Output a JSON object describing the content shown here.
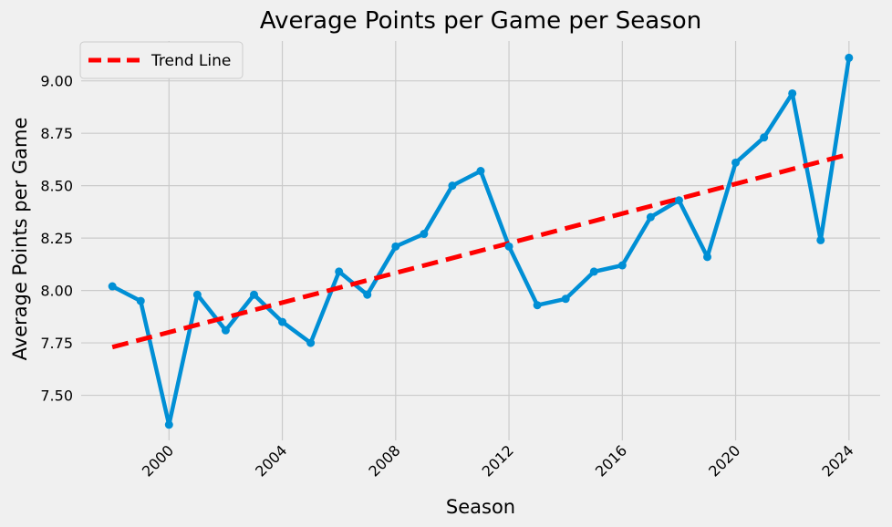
{
  "chart_data": {
    "type": "line",
    "title": "Average Points per Game per Season",
    "xlabel": "Season",
    "ylabel": "Average Points per Game",
    "xlim": [
      1996.9,
      2025.1
    ],
    "ylim": [
      7.285,
      9.19
    ],
    "xticks": [
      2000,
      2004,
      2008,
      2012,
      2016,
      2020,
      2024
    ],
    "yticks": [
      7.5,
      7.75,
      8.0,
      8.25,
      8.5,
      8.75,
      9.0
    ],
    "grid": true,
    "legend_position": "top-left",
    "colors": {
      "series": "#008fd5",
      "trend": "#ff0000",
      "background": "#f0f0f0",
      "grid": "#cbcbcb"
    },
    "series": [
      {
        "x": [
          1998,
          1999,
          2000,
          2001,
          2002,
          2003,
          2004,
          2005,
          2006,
          2007,
          2008,
          2009,
          2010,
          2011,
          2012,
          2013,
          2014,
          2015,
          2016,
          2017,
          2018,
          2019,
          2020,
          2021,
          2022,
          2023,
          2024
        ],
        "values": [
          8.02,
          7.95,
          7.36,
          7.98,
          7.81,
          7.98,
          7.85,
          7.75,
          8.09,
          7.98,
          8.21,
          8.27,
          8.5,
          8.57,
          8.21,
          7.93,
          7.96,
          8.09,
          8.12,
          8.35,
          8.43,
          8.16,
          8.61,
          8.73,
          8.94,
          8.24,
          9.11
        ]
      },
      {
        "name": "Trend Line",
        "style": "dashed",
        "x": [
          1998,
          2024
        ],
        "values": [
          7.73,
          8.65
        ]
      }
    ]
  }
}
